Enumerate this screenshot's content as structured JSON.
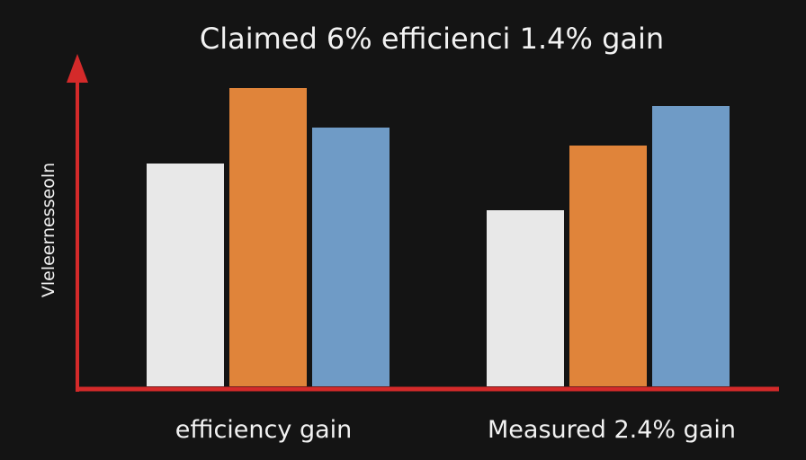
{
  "chart_data": {
    "type": "bar",
    "title": "Claimed 6% efficienci 1.4% gain",
    "ylabel": "Vleleernesseoln",
    "xlabel": "",
    "categories": [
      "efficiency gain",
      "Measured 2.4% gain"
    ],
    "series": [
      {
        "values": [
          62,
          49
        ]
      },
      {
        "values": [
          83,
          67
        ]
      },
      {
        "values": [
          72,
          78
        ]
      }
    ],
    "ylim": [
      0,
      100
    ],
    "grid": false,
    "legend": "none"
  },
  "colors": {
    "background": "#141414",
    "axis": "#d42a2a",
    "series": [
      "#e8e8e8",
      "#e0843a",
      "#6f9bc6"
    ]
  }
}
